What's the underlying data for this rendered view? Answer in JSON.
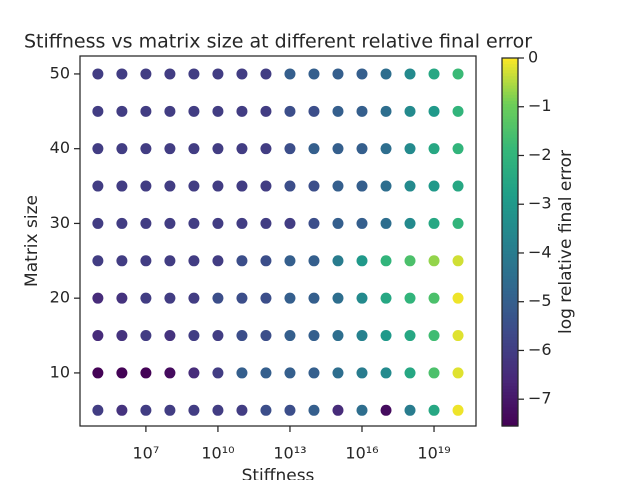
{
  "chart_data": {
    "type": "scatter",
    "title": "Stiffness vs matrix size at different relative final error",
    "x_label": "Stiffness",
    "y_label": "Matrix size",
    "colorbar_label": "log relative final error",
    "x_scale": "log",
    "colormap": "viridis",
    "xlim": [
      18000,
      5.6e+20
    ],
    "ylim": [
      2.9,
      52.4
    ],
    "clim": [
      -7.55,
      0
    ],
    "xticks": [
      {
        "value": 10000000.0,
        "label": "10⁷"
      },
      {
        "value": 10000000000.0,
        "label": "10¹⁰"
      },
      {
        "value": 10000000000000.0,
        "label": "10¹³"
      },
      {
        "value": 1e+16,
        "label": "10¹⁶"
      },
      {
        "value": 1e+19,
        "label": "10¹⁹"
      }
    ],
    "yticks": [
      10,
      20,
      30,
      40,
      50
    ],
    "cticks": [
      0,
      {
        "value": -1,
        "label": "−1"
      },
      {
        "value": -2,
        "label": "−2"
      },
      {
        "value": -3,
        "label": "−3"
      },
      {
        "value": -4,
        "label": "−4"
      },
      {
        "value": -5,
        "label": "−5"
      },
      {
        "value": -6,
        "label": "−6"
      },
      {
        "value": -7,
        "label": "−7"
      }
    ],
    "x": [
      100000.0,
      1000000.0,
      10000000.0,
      100000000.0,
      1000000000.0,
      10000000000.0,
      100000000000.0,
      1000000000000.0,
      10000000000000.0,
      100000000000000.0,
      1000000000000000.0,
      1e+16,
      1e+17,
      1e+18,
      1e+19,
      1e+20,
      100000.0,
      1000000.0,
      10000000.0,
      100000000.0,
      1000000000.0,
      10000000000.0,
      100000000000.0,
      1000000000000.0,
      10000000000000.0,
      100000000000000.0,
      1000000000000000.0,
      1e+16,
      1e+17,
      1e+18,
      1e+19,
      1e+20,
      100000.0,
      1000000.0,
      10000000.0,
      100000000.0,
      1000000000.0,
      10000000000.0,
      100000000000.0,
      1000000000000.0,
      10000000000000.0,
      100000000000000.0,
      1000000000000000.0,
      1e+16,
      1e+17,
      1e+18,
      1e+19,
      1e+20,
      100000.0,
      1000000.0,
      10000000.0,
      100000000.0,
      1000000000.0,
      10000000000.0,
      100000000000.0,
      1000000000000.0,
      10000000000000.0,
      100000000000000.0,
      1000000000000000.0,
      1e+16,
      1e+17,
      1e+18,
      1e+19,
      1e+20,
      100000.0,
      1000000.0,
      10000000.0,
      100000000.0,
      1000000000.0,
      10000000000.0,
      100000000000.0,
      1000000000000.0,
      10000000000000.0,
      100000000000000.0,
      1000000000000000.0,
      1e+16,
      1e+17,
      1e+18,
      1e+19,
      1e+20,
      100000.0,
      1000000.0,
      10000000.0,
      100000000.0,
      1000000000.0,
      10000000000.0,
      100000000000.0,
      1000000000000.0,
      10000000000000.0,
      100000000000000.0,
      1000000000000000.0,
      1e+16,
      1e+17,
      1e+18,
      1e+19,
      1e+20,
      100000.0,
      1000000.0,
      10000000.0,
      100000000.0,
      1000000000.0,
      10000000000.0,
      100000000000.0,
      1000000000000.0,
      10000000000000.0,
      100000000000000.0,
      1000000000000000.0,
      1e+16,
      1e+17,
      1e+18,
      1e+19,
      1e+20,
      100000.0,
      1000000.0,
      10000000.0,
      100000000.0,
      1000000000.0,
      10000000000.0,
      100000000000.0,
      1000000000000.0,
      10000000000000.0,
      100000000000000.0,
      1000000000000000.0,
      1e+16,
      1e+17,
      1e+18,
      1e+19,
      1e+20,
      100000.0,
      1000000.0,
      10000000.0,
      100000000.0,
      1000000000.0,
      10000000000.0,
      100000000000.0,
      1000000000000.0,
      10000000000000.0,
      100000000000000.0,
      1000000000000000.0,
      1e+16,
      1e+17,
      1e+18,
      1e+19,
      1e+20,
      100000.0,
      1000000.0,
      10000000.0,
      100000000.0,
      1000000000.0,
      10000000000.0,
      100000000000.0,
      1000000000000.0,
      10000000000000.0,
      100000000000000.0,
      1000000000000000.0,
      1e+16,
      1e+17,
      1e+18,
      1e+19,
      1e+20
    ],
    "y": [
      5,
      5,
      5,
      5,
      5,
      5,
      5,
      5,
      5,
      5,
      5,
      5,
      5,
      5,
      5,
      5,
      10,
      10,
      10,
      10,
      10,
      10,
      10,
      10,
      10,
      10,
      10,
      10,
      10,
      10,
      10,
      10,
      15,
      15,
      15,
      15,
      15,
      15,
      15,
      15,
      15,
      15,
      15,
      15,
      15,
      15,
      15,
      15,
      20,
      20,
      20,
      20,
      20,
      20,
      20,
      20,
      20,
      20,
      20,
      20,
      20,
      20,
      20,
      20,
      25,
      25,
      25,
      25,
      25,
      25,
      25,
      25,
      25,
      25,
      25,
      25,
      25,
      25,
      25,
      25,
      30,
      30,
      30,
      30,
      30,
      30,
      30,
      30,
      30,
      30,
      30,
      30,
      30,
      30,
      30,
      30,
      35,
      35,
      35,
      35,
      35,
      35,
      35,
      35,
      35,
      35,
      35,
      35,
      35,
      35,
      35,
      35,
      40,
      40,
      40,
      40,
      40,
      40,
      40,
      40,
      40,
      40,
      40,
      40,
      40,
      40,
      40,
      40,
      45,
      45,
      45,
      45,
      45,
      45,
      45,
      45,
      45,
      45,
      45,
      45,
      45,
      45,
      45,
      45,
      50,
      50,
      50,
      50,
      50,
      50,
      50,
      50,
      50,
      50,
      50,
      50,
      50,
      50,
      50,
      50
    ],
    "c": [
      -6,
      -6.3,
      -6,
      -6,
      -6,
      -6,
      -6,
      -5.5,
      -5.5,
      -5,
      -6.5,
      -4.5,
      -7.3,
      -4,
      -2.5,
      -0.1,
      -7.5,
      -7.5,
      -7.5,
      -7.3,
      -6.5,
      -6,
      -5,
      -5,
      -5,
      -5,
      -4.5,
      -4,
      -3.5,
      -2.5,
      -1.5,
      -0.2,
      -6.5,
      -6.3,
      -6,
      -6.3,
      -6,
      -6,
      -5.5,
      -5.5,
      -5,
      -5,
      -4.5,
      -3.8,
      -3,
      -2.5,
      -1.7,
      -0.2,
      -6.5,
      -6.3,
      -6,
      -6,
      -6,
      -5.5,
      -5.5,
      -5.5,
      -5,
      -5,
      -4.5,
      -3.5,
      -2.5,
      -2,
      -1.5,
      -0.1,
      -6,
      -6,
      -6,
      -6,
      -6,
      -6,
      -5.5,
      -5.5,
      -5,
      -5,
      -4,
      -3,
      -2,
      -1.5,
      -0.7,
      -0.3,
      -6,
      -6,
      -6,
      -6,
      -6,
      -6,
      -6,
      -6,
      -6,
      -5.5,
      -5,
      -5,
      -4.5,
      -3.5,
      -2.5,
      -2,
      -6,
      -6,
      -6,
      -6,
      -6,
      -6,
      -6,
      -6,
      -5.5,
      -5.5,
      -5,
      -5,
      -4.5,
      -3.5,
      -3,
      -2.5,
      -6,
      -6,
      -6,
      -6,
      -6,
      -6,
      -6,
      -6,
      -5.5,
      -5,
      -5,
      -5,
      -4.5,
      -3.5,
      -2.5,
      -2,
      -6,
      -6,
      -6,
      -6,
      -6,
      -6,
      -6,
      -6,
      -5.5,
      -5.5,
      -5,
      -5,
      -4.5,
      -3.5,
      -3,
      -2,
      -6,
      -6,
      -6,
      -6,
      -6,
      -6,
      -6,
      -6,
      -5,
      -5,
      -5,
      -5,
      -4.5,
      -3.5,
      -2.5,
      -1.8
    ]
  }
}
